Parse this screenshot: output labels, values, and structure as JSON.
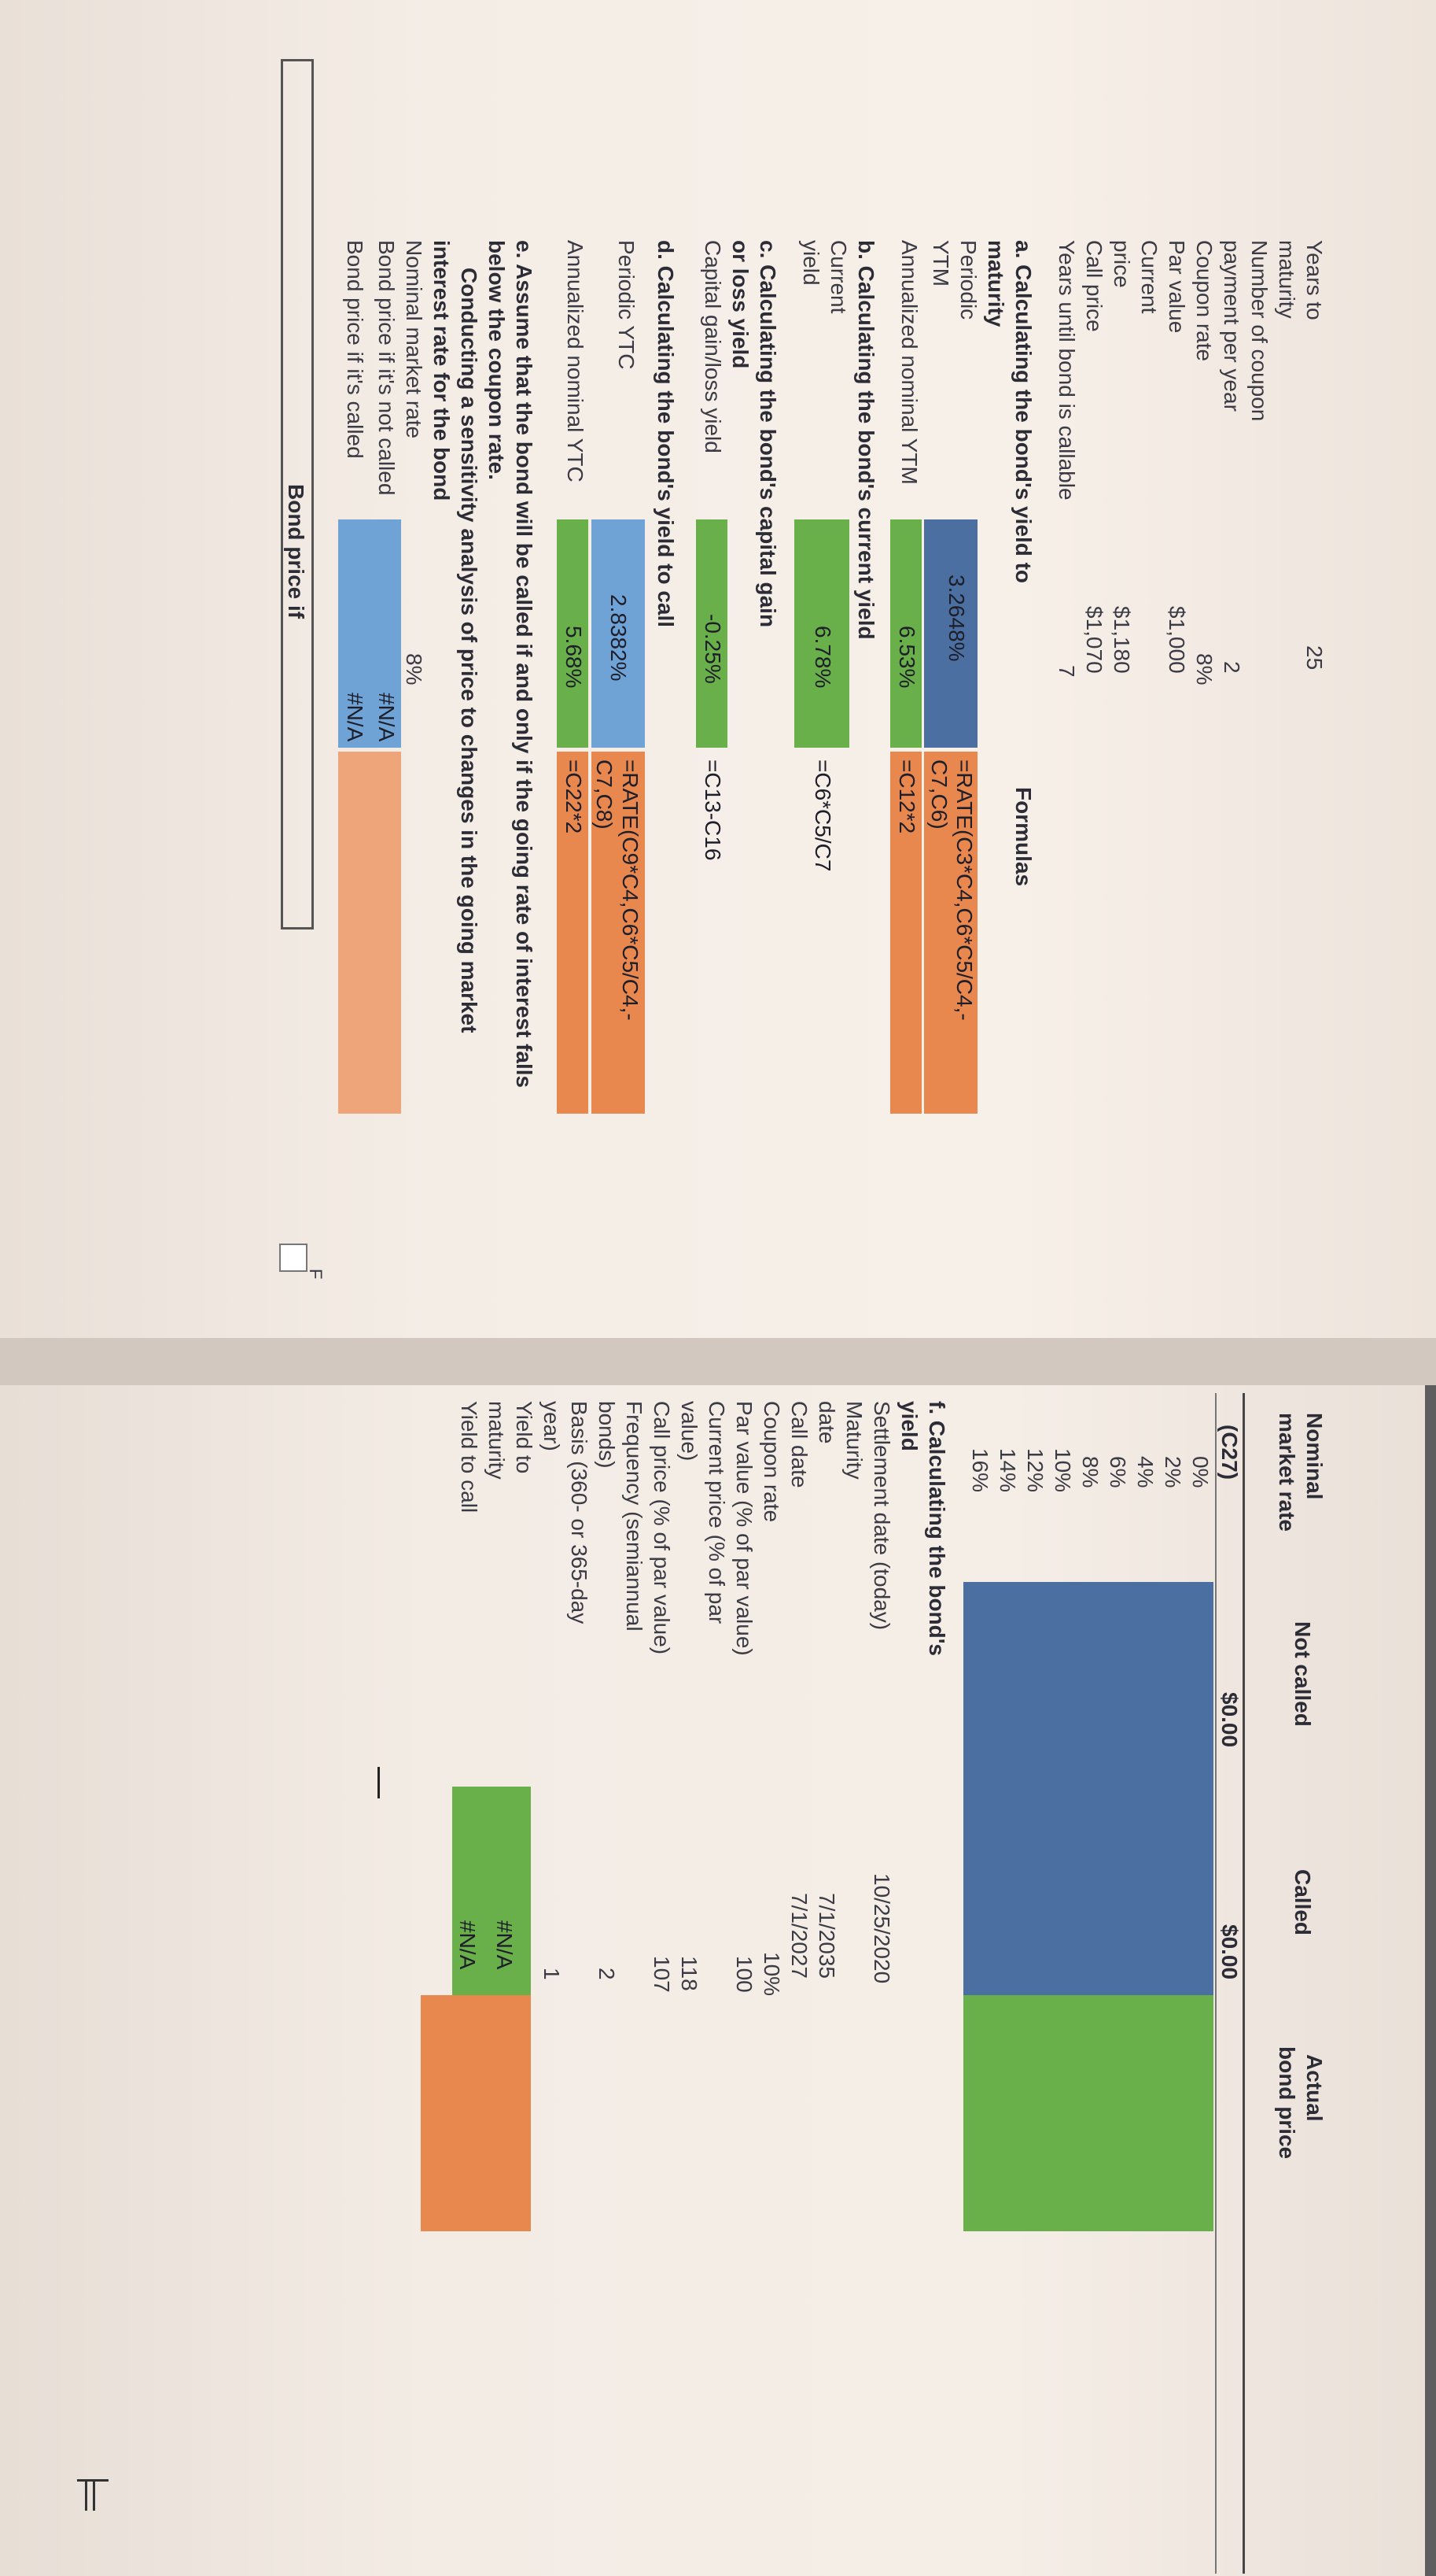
{
  "left": {
    "inputs": [
      {
        "label1": "Years to",
        "label2": "maturity",
        "value": "25"
      },
      {
        "label1": "Number of coupon",
        "label2": "payment per year",
        "value": "2"
      },
      {
        "label1": "Coupon rate",
        "label2": "",
        "value": "8%"
      },
      {
        "label1": "Par value",
        "label2": "",
        "value": "$1,000"
      },
      {
        "label1": "Current",
        "label2": "price",
        "value": "$1,180"
      },
      {
        "label1": "Call price",
        "label2": "",
        "value": "$1,070"
      },
      {
        "label1": "Years until bond is callable",
        "label2": "",
        "value": "7"
      }
    ],
    "formulas_header": "Formulas",
    "a_title1": "a. Calculating the bond's yield to",
    "a_title2": "maturity",
    "periodic_label1": "Periodic",
    "periodic_label2": "YTM",
    "periodic_ytm": "3.2648%",
    "periodic_ytm_formula1": "=RATE(C3*C4,C6*C5/C4,-",
    "periodic_ytm_formula2": "C7,C6)",
    "annual_ytm_label": "Annualized nominal YTM",
    "annual_ytm": "6.53%",
    "annual_ytm_formula": "=C12*2",
    "b_title": "b. Calculating the bond's current yield",
    "cy_label1": "Current",
    "cy_label2": "yield",
    "cy_value": "6.78%",
    "cy_formula": "=C6*C5/C7",
    "c_title1": "c. Calculating the bond's capital gain",
    "c_title2": "or loss yield",
    "cg_label": "Capital gain/loss yield",
    "cg_value": "-0.25%",
    "cg_formula": "=C13-C16",
    "d_title": "d. Calculating the bond's yield to call",
    "pytc_label": "Periodic YTC",
    "pytc_value": "2.8382%",
    "pytc_formula1": "=RATE(C9*C4,C6*C5/C4,-",
    "pytc_formula2": "C7,C8)",
    "aytc_label": "Annualized nominal YTC",
    "aytc_value": "5.68%",
    "aytc_formula": "=C22*2",
    "e_title1": "e. Assume that the bond will be called if and only if the going rate of interest falls",
    "e_title2": "below the coupon rate.",
    "e_title3": "Conducting a sensitivity analysis of price to changes in the going market",
    "e_title4": "interest rate for the bond",
    "nmr_label": "Nominal market rate",
    "nmr_value": "8%",
    "bpnc_label": "Bond price if it's not called",
    "bpnc_value": "#N/A",
    "bpc_label": "Bond price if it's called",
    "bpc_value": "#N/A",
    "bond_price_if": "Bond price if",
    "col_f": "F"
  },
  "right": {
    "headers": {
      "nominal1": "Nominal",
      "nominal2": "market rate",
      "not_called": "Not called",
      "called": "Called",
      "actual1": "Actual",
      "actual2": "bond price"
    },
    "ref_row": {
      "ref": "(C27)",
      "not_called": "$0.00",
      "called": "$0.00"
    },
    "rates": [
      "0%",
      "2%",
      "4%",
      "6%",
      "8%",
      "10%",
      "12%",
      "14%",
      "16%"
    ],
    "f_title1": "f. Calculating the bond's",
    "f_title2": "yield",
    "f_rows": [
      {
        "l1": "Settlement date (today)",
        "l2": "",
        "value": "10/25/2020"
      },
      {
        "l1": "Maturity",
        "l2": "date",
        "value": "7/1/2035"
      },
      {
        "l1": "Call date",
        "l2": "",
        "value": "7/1/2027"
      },
      {
        "l1": "Coupon rate",
        "l2": "",
        "value": "10%"
      },
      {
        "l1": "Par value (% of par value)",
        "l2": "",
        "value": "100"
      },
      {
        "l1": "Current price (% of par",
        "l2": "value)",
        "value": "118"
      },
      {
        "l1": "Call price (% of par value)",
        "l2": "",
        "value": "107"
      },
      {
        "l1": "Frequency (semiannual",
        "l2": "bonds)",
        "value": "2"
      },
      {
        "l1": "Basis (360- or 365-day",
        "l2": "year)",
        "value": "1"
      }
    ],
    "ytm_label1": "Yield to",
    "ytm_label2": "maturity",
    "ytm_value": "#N/A",
    "ytc_label": "Yield to call",
    "ytc_value": "#N/A"
  }
}
